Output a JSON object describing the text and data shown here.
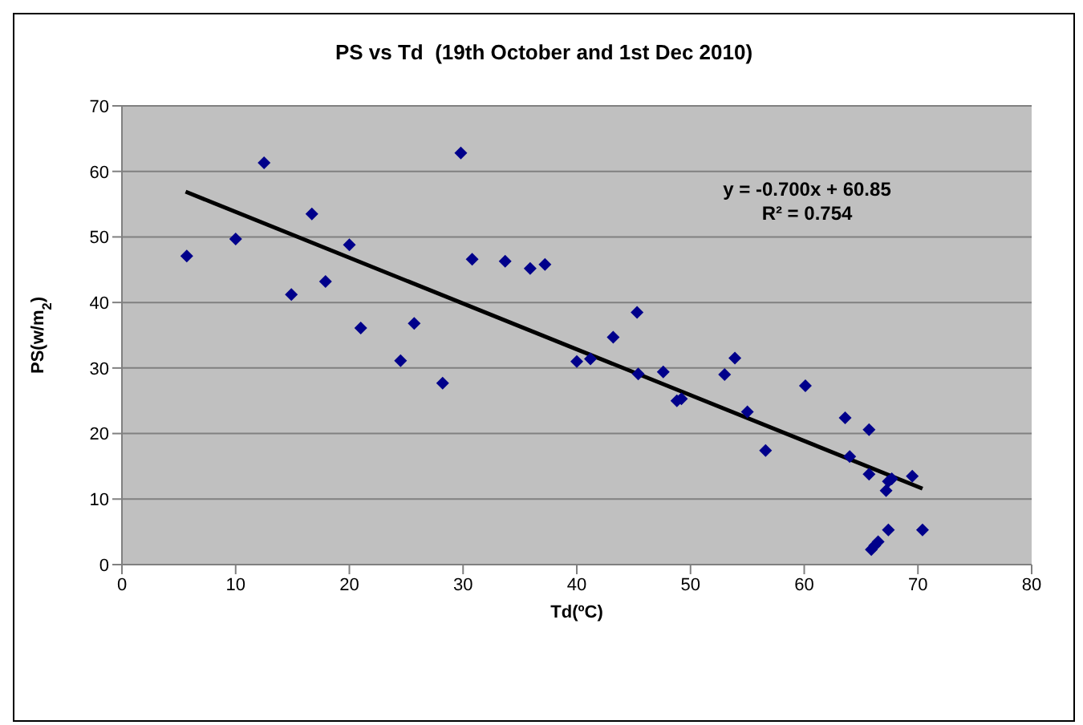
{
  "chart_data": {
    "type": "scatter",
    "title": "PS vs Td  (19th October and 1st Dec 2010)",
    "xlabel": "Td(ºC)",
    "ylabel": "PS(w/m$_{2}$)",
    "annotations": [
      "y = -0.700x + 60.85",
      "R² = 0.754"
    ],
    "series": [
      {
        "color": "#00008b",
        "x": [
          5.7,
          10.0,
          12.5,
          14.9,
          16.7,
          17.9,
          20.0,
          21.0,
          24.5,
          25.7,
          28.2,
          29.8,
          30.8,
          33.7,
          35.9,
          37.2,
          40.0,
          41.2,
          43.2,
          45.3,
          45.4,
          47.6,
          48.8,
          49.2,
          53.0,
          53.9,
          55.0,
          56.6,
          60.1,
          63.6,
          64.0,
          65.7,
          65.7,
          65.9,
          66.2,
          66.5,
          67.4,
          67.2,
          67.4,
          67.7,
          69.5,
          70.4
        ],
        "values": [
          47.1,
          49.7,
          61.3,
          41.2,
          53.5,
          43.2,
          48.8,
          36.1,
          31.1,
          36.8,
          27.7,
          62.8,
          46.6,
          46.3,
          45.2,
          45.8,
          31.0,
          31.4,
          34.7,
          38.5,
          29.1,
          29.4,
          25.0,
          25.3,
          29.0,
          31.5,
          23.3,
          17.4,
          27.3,
          22.4,
          16.5,
          20.6,
          13.8,
          2.3,
          2.9,
          3.5,
          5.3,
          11.3,
          12.7,
          13.1,
          13.5,
          5.3
        ]
      },
      {
        "type": "line",
        "marker": "none",
        "color": "#000000",
        "x": [
          5.6,
          70.4
        ],
        "values": [
          56.9,
          11.6
        ]
      }
    ],
    "xlim": [
      0,
      80
    ],
    "xticks": [
      0,
      10,
      20,
      30,
      40,
      50,
      60,
      70,
      80
    ],
    "ylim": [
      0,
      70
    ],
    "yticks": [
      0,
      10,
      20,
      30,
      40,
      50,
      60,
      70
    ],
    "grid": "y",
    "marker": "diamond"
  }
}
